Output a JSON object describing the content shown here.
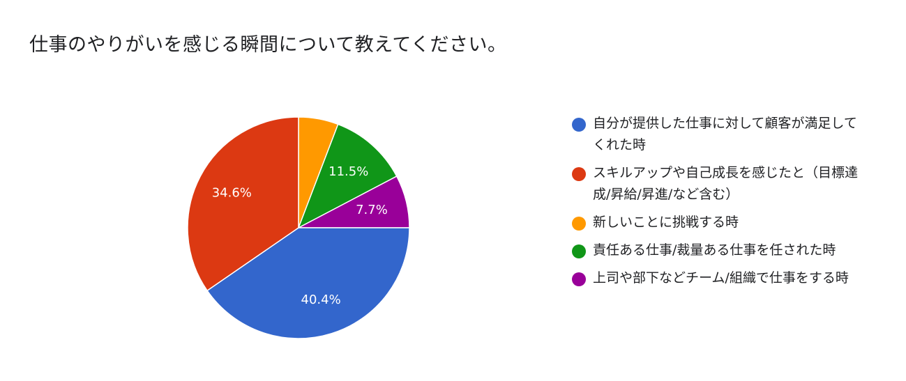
{
  "title": "仕事のやりがいを感じる瞬間について教えてください。",
  "chart_data": {
    "type": "pie",
    "title": "仕事のやりがいを感じる瞬間について教えてください。",
    "series": [
      {
        "name": "自分が提供した仕事に対して顧客が満足してくれた時",
        "value": 40.4,
        "label": "40.4%",
        "color": "#3366cc"
      },
      {
        "name": "スキルアップや自己成長を感じたと（目標達成/昇給/昇進/など含む）",
        "value": 34.6,
        "label": "34.6%",
        "color": "#dc3912"
      },
      {
        "name": "新しいことに挑戦する時",
        "value": 5.8,
        "label": "",
        "color": "#ff9900"
      },
      {
        "name": "責任ある仕事/裁量ある仕事を任された時",
        "value": 11.5,
        "label": "11.5%",
        "color": "#109618"
      },
      {
        "name": "上司や部下などチーム/組織で仕事をする時",
        "value": 7.7,
        "label": "7.7%",
        "color": "#990099"
      }
    ],
    "legend_position": "right"
  },
  "legend": [
    {
      "label": "自分が提供した仕事に対して顧客が満足してくれた時",
      "color": "#3366cc"
    },
    {
      "label": "スキルアップや自己成長を感じたと（目標達成/昇給/昇進/など含む）",
      "color": "#dc3912"
    },
    {
      "label": "新しいことに挑戦する時",
      "color": "#ff9900"
    },
    {
      "label": "責任ある仕事/裁量ある仕事を任された時",
      "color": "#109618"
    },
    {
      "label": "上司や部下などチーム/組織で仕事をする時",
      "color": "#990099"
    }
  ]
}
